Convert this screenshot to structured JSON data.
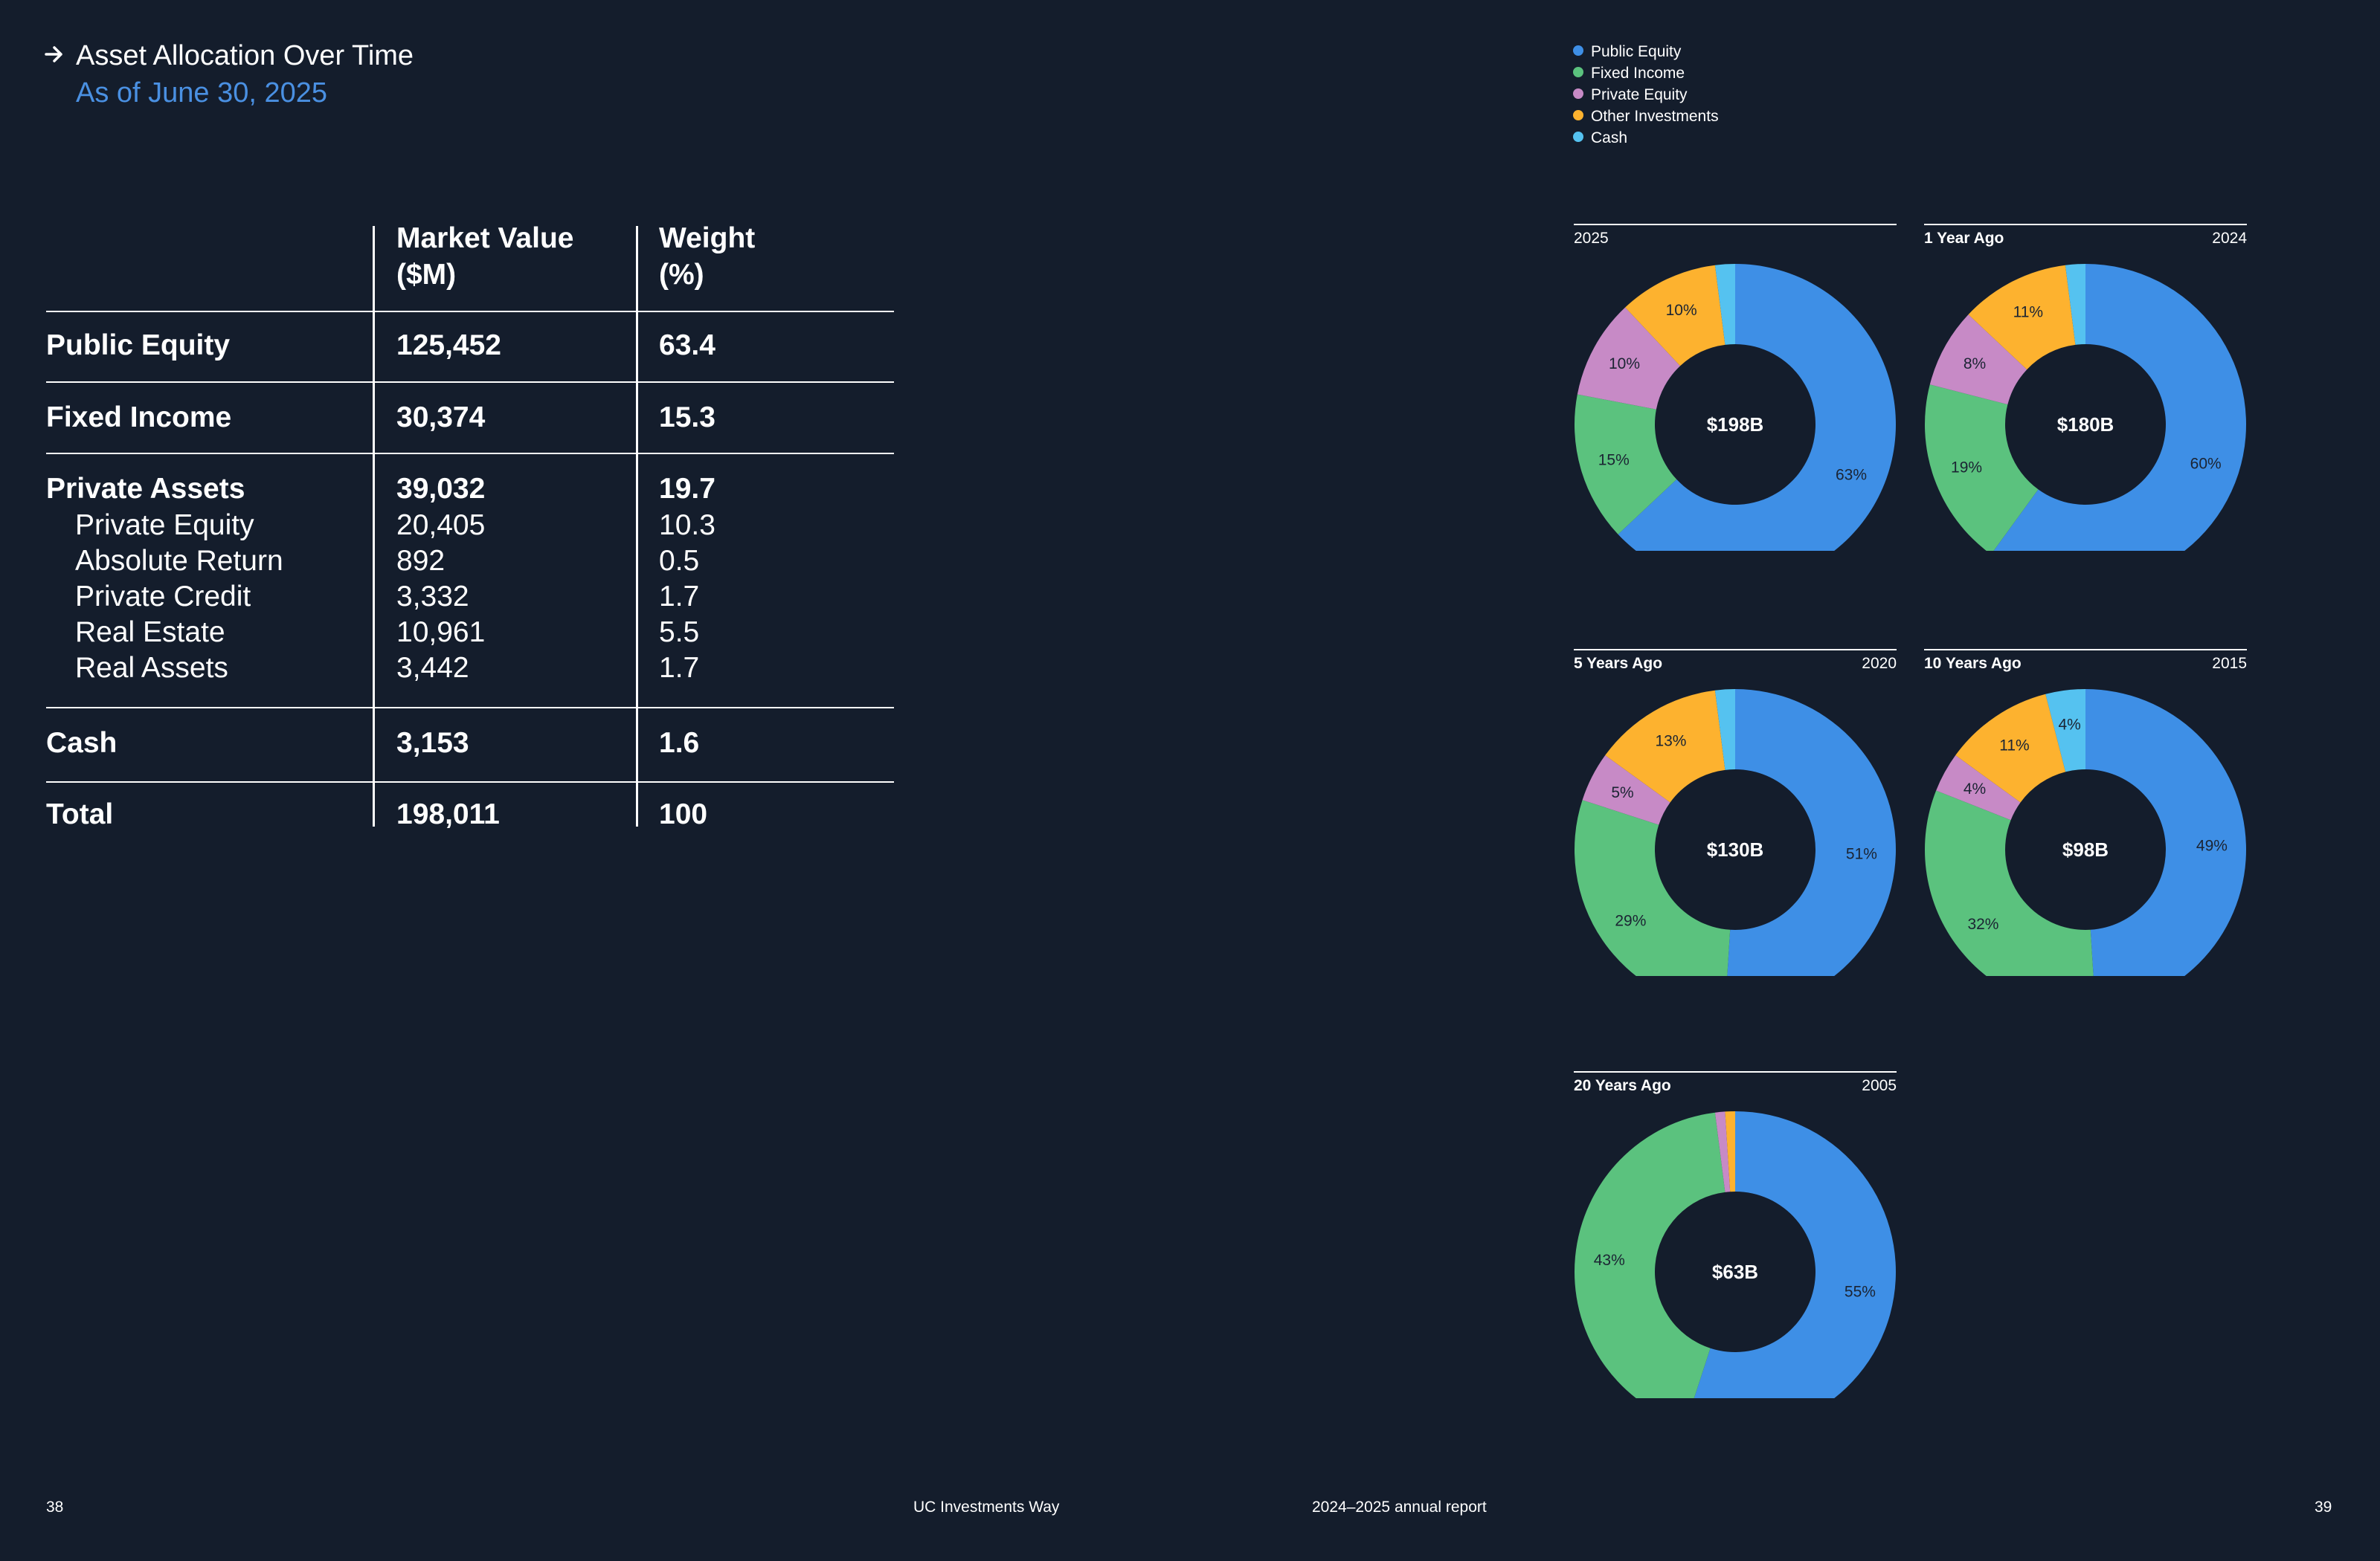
{
  "header": {
    "title": "Asset Allocation Over Time",
    "subtitle": "As of June 30, 2025"
  },
  "colors": {
    "background": "#141d2c",
    "accent": "#4a90e2",
    "public_equity": "#3e8fe6",
    "fixed_income": "#5bc27e",
    "private_equity": "#c78ac6",
    "other_investments": "#fdb22f",
    "cash": "#55c2f0"
  },
  "table": {
    "headers": [
      "",
      "Market Value\n($M)",
      "Weight\n(%)"
    ],
    "rows": [
      {
        "label": "Public Equity",
        "value": "125,452",
        "weight": "63.4"
      },
      {
        "label": "Fixed Income",
        "value": "30,374",
        "weight": "15.3"
      },
      {
        "label": "Private Assets",
        "value": "39,032",
        "weight": "19.7"
      },
      {
        "label": "Private Equity",
        "value": "20,405",
        "weight": "10.3"
      },
      {
        "label": "Absolute Return",
        "value": "892",
        "weight": "0.5"
      },
      {
        "label": "Private Credit",
        "value": "3,332",
        "weight": "1.7"
      },
      {
        "label": "Real Estate",
        "value": "10,961",
        "weight": "5.5"
      },
      {
        "label": "Real Assets",
        "value": "3,442",
        "weight": "1.7"
      },
      {
        "label": "Cash",
        "value": "3,153",
        "weight": "1.6"
      },
      {
        "label": "Total",
        "value": "198,011",
        "weight": "100"
      }
    ]
  },
  "chart_data": [
    {
      "type": "pie",
      "donut": true,
      "label_left": "2025",
      "label_right": "",
      "center_label": "$198B",
      "series": [
        "Public Equity",
        "Fixed Income",
        "Private Equity",
        "Other Investments",
        "Cash"
      ],
      "values": [
        63,
        15,
        10,
        10,
        2
      ],
      "value_labels": [
        "63%",
        "15%",
        "10%",
        "10%",
        "2%"
      ]
    },
    {
      "type": "pie",
      "donut": true,
      "label_left": "1 Year Ago",
      "label_right": "2024",
      "center_label": "$180B",
      "series": [
        "Public Equity",
        "Fixed Income",
        "Private Equity",
        "Other Investments",
        "Cash"
      ],
      "values": [
        60,
        19,
        8,
        11,
        2
      ],
      "value_labels": [
        "60%",
        "19%",
        "8%",
        "11%",
        "2%"
      ]
    },
    {
      "type": "pie",
      "donut": true,
      "label_left": "5 Years Ago",
      "label_right": "2020",
      "center_label": "$130B",
      "series": [
        "Public Equity",
        "Fixed Income",
        "Private Equity",
        "Other Investments",
        "Cash"
      ],
      "values": [
        51,
        29,
        5,
        13,
        2
      ],
      "value_labels": [
        "51%",
        "29%",
        "5%",
        "13%",
        "2%"
      ]
    },
    {
      "type": "pie",
      "donut": true,
      "label_left": "10 Years Ago",
      "label_right": "2015",
      "center_label": "$98B",
      "series": [
        "Public Equity",
        "Fixed Income",
        "Private Equity",
        "Other Investments",
        "Cash"
      ],
      "values": [
        49,
        32,
        4,
        11,
        4
      ],
      "value_labels": [
        "49%",
        "32%",
        "4%",
        "11%",
        "4%"
      ]
    },
    {
      "type": "pie",
      "donut": true,
      "label_left": "20 Years Ago",
      "label_right": "2005",
      "center_label": "$63B",
      "series": [
        "Public Equity",
        "Fixed Income",
        "Private Equity",
        "Other Investments",
        "Cash"
      ],
      "values": [
        55,
        43,
        1,
        1,
        0
      ],
      "value_labels": [
        "55%",
        "43%",
        "1%",
        "1%",
        ""
      ]
    }
  ],
  "legend": [
    "Public Equity",
    "Fixed Income",
    "Private Equity",
    "Other Investments",
    "Cash"
  ],
  "footer": {
    "left_page": "38",
    "left_text": "UC Investments Way",
    "right_text": "2024–2025 annual report",
    "right_page": "39"
  }
}
